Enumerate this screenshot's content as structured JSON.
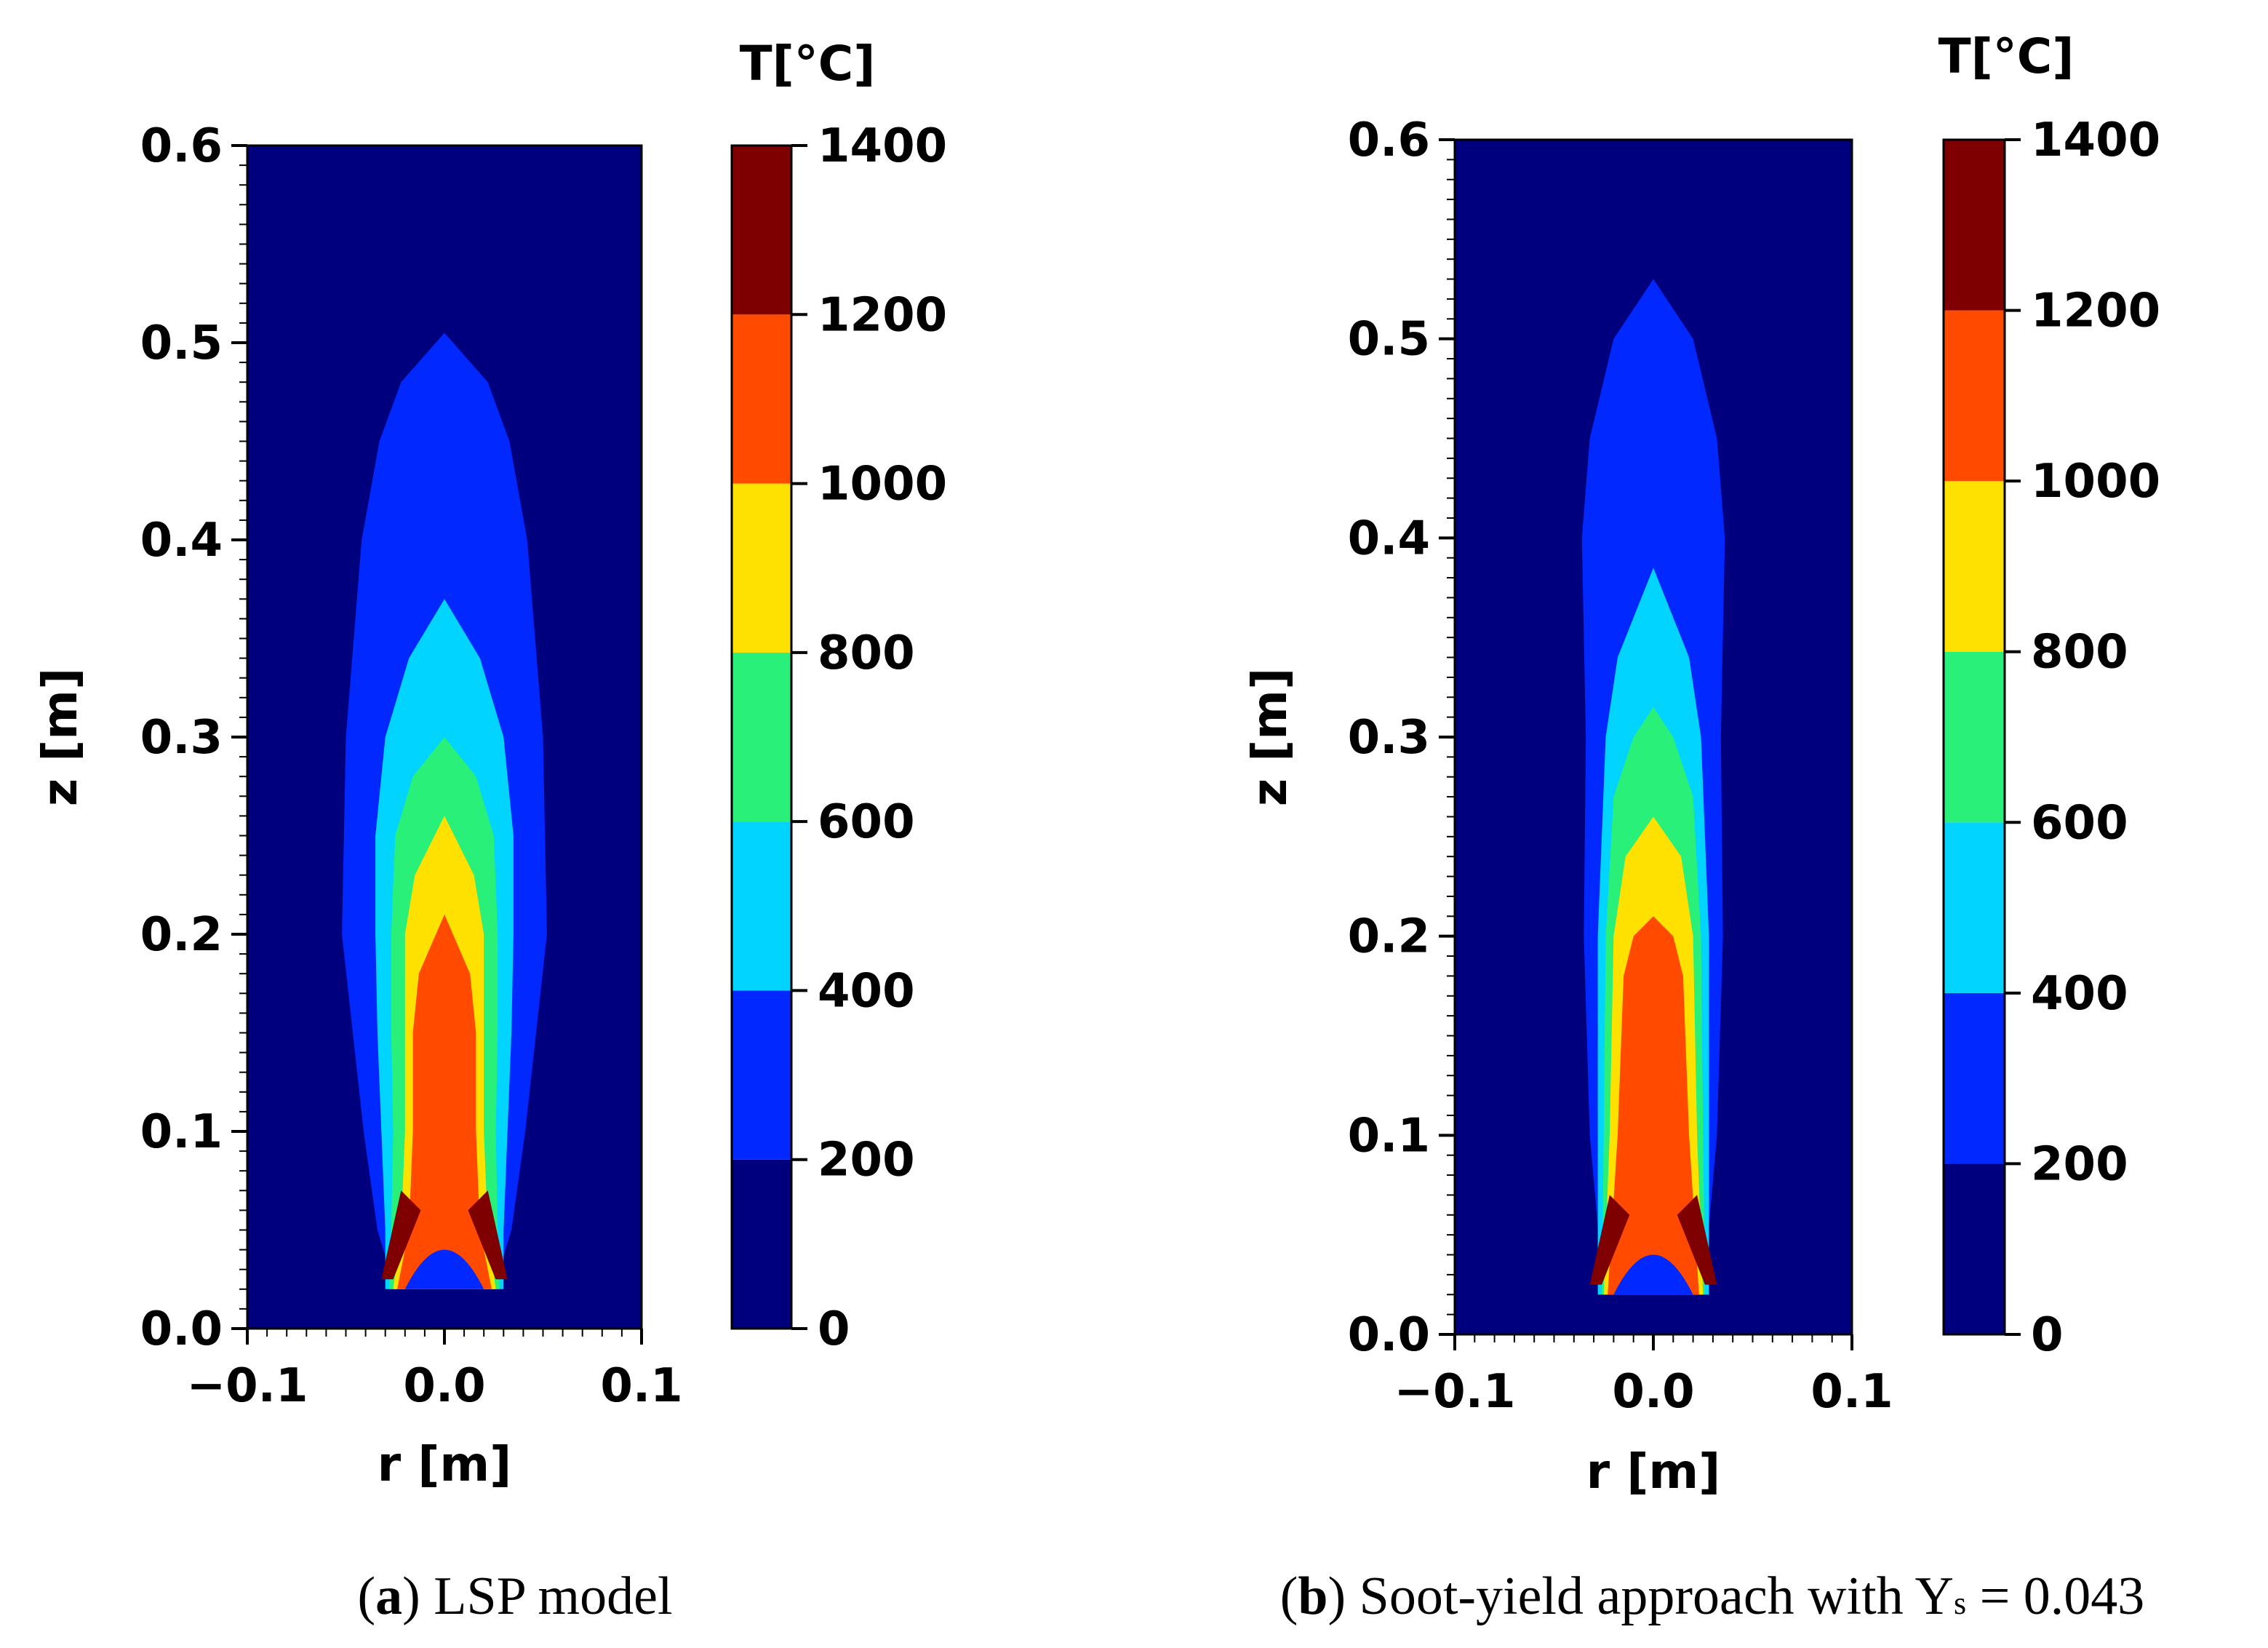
{
  "chart_data": [
    {
      "type": "heatmap",
      "panel_label": "a",
      "caption": "LSP model",
      "xlabel": "r [m]",
      "ylabel": "z [m]",
      "xlim": [
        -0.1,
        0.1
      ],
      "ylim": [
        0.0,
        0.6
      ],
      "xticks": [
        "−0.1",
        "0.0",
        "0.1"
      ],
      "yticks": [
        "0.0",
        "0.1",
        "0.2",
        "0.3",
        "0.4",
        "0.5",
        "0.6"
      ],
      "colorbar": {
        "title": "T[°C]",
        "levels": [
          0,
          200,
          400,
          600,
          800,
          1000,
          1200,
          1400
        ],
        "tick_labels": [
          "0",
          "200",
          "400",
          "600",
          "800",
          "1000",
          "1200",
          "1400"
        ],
        "colors": [
          "#00007f",
          "#0028ff",
          "#00d4ff",
          "#29f078",
          "#ffe100",
          "#ff4a00",
          "#7f0000"
        ]
      },
      "contours": [
        {
          "level": 200,
          "half_width": [
            [
              0.02,
              0.025
            ],
            [
              0.05,
              0.034
            ],
            [
              0.1,
              0.041
            ],
            [
              0.2,
              0.052
            ],
            [
              0.3,
              0.05
            ],
            [
              0.4,
              0.042
            ],
            [
              0.45,
              0.033
            ],
            [
              0.48,
              0.022
            ],
            [
              0.505,
              0.0
            ]
          ]
        },
        {
          "level": 400,
          "half_width": [
            [
              0.02,
              0.03
            ],
            [
              0.05,
              0.03
            ],
            [
              0.1,
              0.032
            ],
            [
              0.15,
              0.034
            ],
            [
              0.2,
              0.035
            ],
            [
              0.25,
              0.035
            ],
            [
              0.3,
              0.03
            ],
            [
              0.34,
              0.018
            ],
            [
              0.37,
              0.0
            ]
          ]
        },
        {
          "level": 600,
          "half_width": [
            [
              0.02,
              0.028
            ],
            [
              0.05,
              0.027
            ],
            [
              0.1,
              0.026
            ],
            [
              0.15,
              0.027
            ],
            [
              0.2,
              0.027
            ],
            [
              0.25,
              0.025
            ],
            [
              0.28,
              0.016
            ],
            [
              0.3,
              0.0
            ]
          ]
        },
        {
          "level": 800,
          "half_width": [
            [
              0.02,
              0.026
            ],
            [
              0.05,
              0.022
            ],
            [
              0.1,
              0.02
            ],
            [
              0.15,
              0.02
            ],
            [
              0.2,
              0.02
            ],
            [
              0.23,
              0.015
            ],
            [
              0.26,
              0.0
            ]
          ]
        },
        {
          "level": 1000,
          "half_width": [
            [
              0.02,
              0.024
            ],
            [
              0.05,
              0.018
            ],
            [
              0.1,
              0.016
            ],
            [
              0.15,
              0.016
            ],
            [
              0.18,
              0.013
            ],
            [
              0.21,
              0.0
            ]
          ]
        }
      ]
    },
    {
      "type": "heatmap",
      "panel_label": "b",
      "caption": "Soot-yield approach with Y",
      "caption_subscript": "s",
      "caption_tail": " = 0.043",
      "xlabel": "r [m]",
      "ylabel": "z [m]",
      "xlim": [
        -0.1,
        0.1
      ],
      "ylim": [
        0.0,
        0.6
      ],
      "xticks": [
        "−0.1",
        "0.0",
        "0.1"
      ],
      "yticks": [
        "0.0",
        "0.1",
        "0.2",
        "0.3",
        "0.4",
        "0.5",
        "0.6"
      ],
      "colorbar": {
        "title": "T[°C]",
        "levels": [
          0,
          200,
          400,
          600,
          800,
          1000,
          1200,
          1400
        ],
        "tick_labels": [
          "0",
          "200",
          "400",
          "600",
          "800",
          "1000",
          "1200",
          "1400"
        ],
        "colors": [
          "#00007f",
          "#0028ff",
          "#00d4ff",
          "#29f078",
          "#ffe100",
          "#ff4a00",
          "#7f0000"
        ]
      },
      "contours": [
        {
          "level": 200,
          "half_width": [
            [
              0.02,
              0.025
            ],
            [
              0.1,
              0.032
            ],
            [
              0.2,
              0.035
            ],
            [
              0.3,
              0.034
            ],
            [
              0.4,
              0.036
            ],
            [
              0.45,
              0.032
            ],
            [
              0.5,
              0.02
            ],
            [
              0.53,
              0.0
            ]
          ]
        },
        {
          "level": 400,
          "half_width": [
            [
              0.02,
              0.028
            ],
            [
              0.1,
              0.028
            ],
            [
              0.2,
              0.028
            ],
            [
              0.3,
              0.024
            ],
            [
              0.34,
              0.018
            ],
            [
              0.36,
              0.01
            ],
            [
              0.385,
              0.0
            ]
          ]
        },
        {
          "level": 600,
          "half_width": [
            [
              0.02,
              0.026
            ],
            [
              0.1,
              0.025
            ],
            [
              0.2,
              0.024
            ],
            [
              0.27,
              0.02
            ],
            [
              0.3,
              0.01
            ],
            [
              0.315,
              0.0
            ]
          ]
        },
        {
          "level": 800,
          "half_width": [
            [
              0.02,
              0.025
            ],
            [
              0.1,
              0.022
            ],
            [
              0.2,
              0.02
            ],
            [
              0.24,
              0.014
            ],
            [
              0.26,
              0.0
            ]
          ]
        },
        {
          "level": 1000,
          "half_width": [
            [
              0.02,
              0.023
            ],
            [
              0.1,
              0.018
            ],
            [
              0.18,
              0.015
            ],
            [
              0.2,
              0.01
            ],
            [
              0.21,
              0.0
            ]
          ]
        }
      ]
    }
  ]
}
